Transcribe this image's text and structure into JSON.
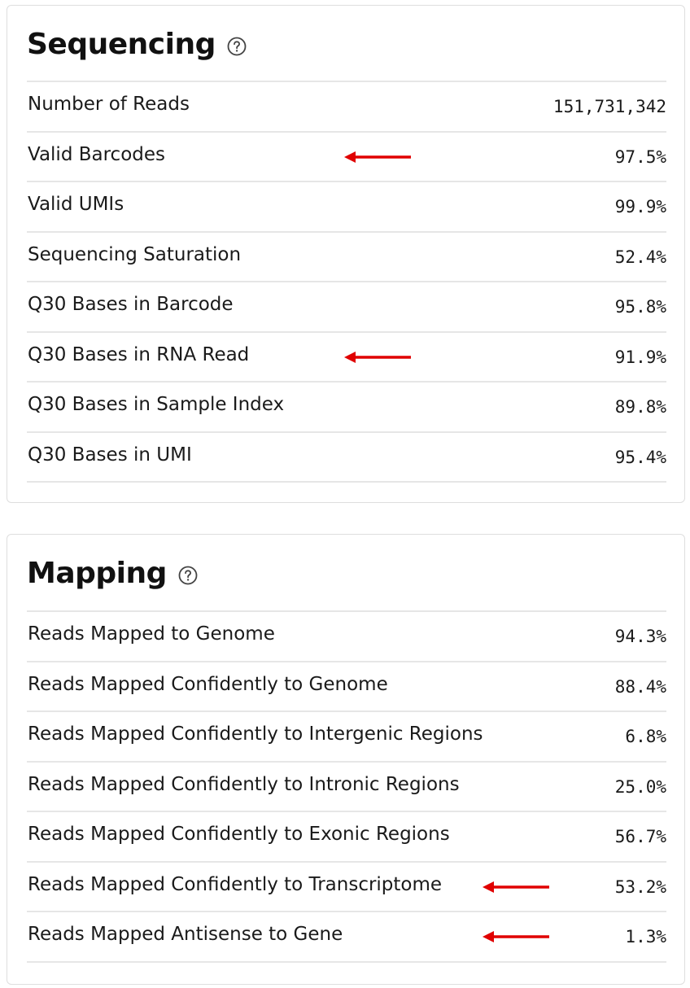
{
  "sequencing": {
    "title": "Sequencing",
    "help_icon": "question-circle-icon",
    "rows": [
      {
        "label": "Number of Reads",
        "value": "151,731,342",
        "arrow": false
      },
      {
        "label": "Valid Barcodes",
        "value": "97.5%",
        "arrow": true
      },
      {
        "label": "Valid UMIs",
        "value": "99.9%",
        "arrow": false
      },
      {
        "label": "Sequencing Saturation",
        "value": "52.4%",
        "arrow": false
      },
      {
        "label": "Q30 Bases in Barcode",
        "value": "95.8%",
        "arrow": false
      },
      {
        "label": "Q30 Bases in RNA Read",
        "value": "91.9%",
        "arrow": true
      },
      {
        "label": "Q30 Bases in Sample Index",
        "value": "89.8%",
        "arrow": false
      },
      {
        "label": "Q30 Bases in UMI",
        "value": "95.4%",
        "arrow": false
      }
    ]
  },
  "mapping": {
    "title": "Mapping",
    "help_icon": "question-circle-icon",
    "rows": [
      {
        "label": "Reads Mapped to Genome",
        "value": "94.3%",
        "arrow": false
      },
      {
        "label": "Reads Mapped Confidently to Genome",
        "value": "88.4%",
        "arrow": false
      },
      {
        "label": "Reads Mapped Confidently to Intergenic Regions",
        "value": "6.8%",
        "arrow": false
      },
      {
        "label": "Reads Mapped Confidently to Intronic Regions",
        "value": "25.0%",
        "arrow": false
      },
      {
        "label": "Reads Mapped Confidently to Exonic Regions",
        "value": "56.7%",
        "arrow": false
      },
      {
        "label": "Reads Mapped Confidently to Transcriptome",
        "value": "53.2%",
        "arrow": true
      },
      {
        "label": "Reads Mapped Antisense to Gene",
        "value": "1.3%",
        "arrow": true
      }
    ]
  },
  "colors": {
    "annotation_arrow": "#e00000",
    "divider": "#e6e6e6",
    "card_border": "#dedede"
  }
}
